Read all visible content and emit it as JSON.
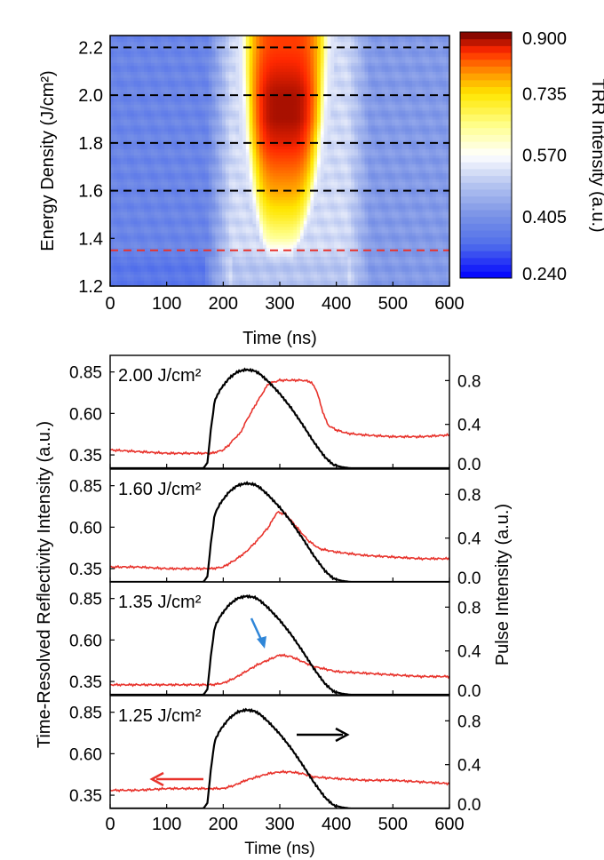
{
  "chart_data": [
    {
      "type": "heatmap",
      "xlabel": "Time (ns)",
      "ylabel": "Energy Density (J/cm²)",
      "xlim": [
        0,
        600
      ],
      "ylim": [
        1.2,
        2.25
      ],
      "xticks": [
        "0",
        "100",
        "200",
        "300",
        "400",
        "500",
        "600"
      ],
      "yticks": [
        "1.2",
        "1.4",
        "1.6",
        "1.8",
        "2.0",
        "2.2"
      ],
      "colorbar": {
        "label": "TRR Intensity (a.u.)",
        "ticks": [
          "0.900",
          "0.735",
          "0.570",
          "0.405",
          "0.240"
        ],
        "range": [
          0.24,
          0.9
        ]
      },
      "dashed_lines": [
        {
          "y": 2.2,
          "color": "#000000"
        },
        {
          "y": 2.0,
          "color": "#000000"
        },
        {
          "y": 1.8,
          "color": "#000000"
        },
        {
          "y": 1.6,
          "color": "#000000"
        },
        {
          "y": 1.35,
          "color": "#e8332c"
        }
      ],
      "hot_region": {
        "y": [
          1.35,
          1.4,
          1.5,
          1.6,
          1.7,
          1.8,
          1.9,
          2.0,
          2.1,
          2.2
        ],
        "t_start": [
          275,
          268,
          258,
          250,
          245,
          240,
          237,
          235,
          233,
          232
        ],
        "t_end": [
          325,
          338,
          352,
          362,
          370,
          375,
          380,
          383,
          385,
          388
        ],
        "peak": [
          0.6,
          0.64,
          0.72,
          0.78,
          0.82,
          0.86,
          0.88,
          0.88,
          0.86,
          0.84
        ]
      }
    },
    {
      "type": "line",
      "xlabel": "Time (ns)",
      "ylabel_left": "Time-Resolved Reflectivity Intensity (a.u.)",
      "ylabel_right": "Pulse Intensity (a.u.)",
      "xlim": [
        0,
        600
      ],
      "xticks": [
        "0",
        "100",
        "200",
        "300",
        "400",
        "500",
        "600"
      ],
      "ylim_left": [
        0.27,
        0.95
      ],
      "yticks_left": [
        "0.85",
        "0.60",
        "0.35"
      ],
      "ylim_right": [
        0,
        1.03
      ],
      "yticks_right": [
        "0.8",
        "0.4",
        "0.0"
      ],
      "series_colors": {
        "reflectivity": "#e8332c",
        "pulse": "#000000"
      },
      "pulse": {
        "x": [
          0,
          165,
          172,
          178,
          185,
          195,
          210,
          225,
          240,
          255,
          265,
          280,
          300,
          320,
          340,
          360,
          380,
          395,
          410,
          425,
          440,
          600
        ],
        "y": [
          0,
          0,
          0.05,
          0.35,
          0.62,
          0.72,
          0.82,
          0.88,
          0.9,
          0.89,
          0.86,
          0.79,
          0.68,
          0.55,
          0.4,
          0.24,
          0.1,
          0.03,
          0.01,
          0,
          0,
          0
        ]
      },
      "panels": [
        {
          "label": "2.00 J/cm²",
          "reflectivity": {
            "x": [
              0,
              50,
              100,
              150,
              180,
              200,
              210,
              220,
              230,
              240,
              260,
              280,
              300,
              320,
              340,
              355,
              365,
              375,
              385,
              400,
              420,
              450,
              500,
              550,
              600
            ],
            "y": [
              0.38,
              0.37,
              0.36,
              0.36,
              0.36,
              0.38,
              0.41,
              0.45,
              0.48,
              0.55,
              0.67,
              0.78,
              0.8,
              0.8,
              0.8,
              0.79,
              0.74,
              0.62,
              0.53,
              0.5,
              0.48,
              0.47,
              0.46,
              0.46,
              0.47
            ]
          }
        },
        {
          "label": "1.60 J/cm²",
          "reflectivity": {
            "x": [
              0,
              50,
              100,
              150,
              180,
              200,
              220,
              240,
              260,
              280,
              295,
              310,
              330,
              350,
              370,
              400,
              450,
              500,
              550,
              600
            ],
            "y": [
              0.36,
              0.36,
              0.35,
              0.35,
              0.35,
              0.36,
              0.4,
              0.45,
              0.52,
              0.6,
              0.69,
              0.68,
              0.6,
              0.52,
              0.47,
              0.45,
              0.43,
              0.42,
              0.41,
              0.41
            ]
          }
        },
        {
          "label": "1.35 J/cm²",
          "reflectivity": {
            "x": [
              0,
              50,
              100,
              150,
              180,
              200,
              220,
              240,
              260,
              280,
              300,
              320,
              340,
              360,
              400,
              450,
              500,
              550,
              600
            ],
            "y": [
              0.33,
              0.33,
              0.33,
              0.33,
              0.33,
              0.34,
              0.37,
              0.41,
              0.45,
              0.48,
              0.51,
              0.5,
              0.47,
              0.44,
              0.41,
              0.4,
              0.39,
              0.38,
              0.38
            ]
          }
        },
        {
          "label": "1.25 J/cm²",
          "reflectivity": {
            "x": [
              0,
              50,
              100,
              150,
              180,
              200,
              220,
              240,
              260,
              280,
              300,
              320,
              340,
              360,
              400,
              450,
              500,
              550,
              600
            ],
            "y": [
              0.38,
              0.38,
              0.39,
              0.39,
              0.39,
              0.39,
              0.41,
              0.44,
              0.46,
              0.48,
              0.49,
              0.49,
              0.48,
              0.46,
              0.45,
              0.44,
              0.44,
              0.43,
              0.42
            ]
          }
        }
      ]
    }
  ]
}
